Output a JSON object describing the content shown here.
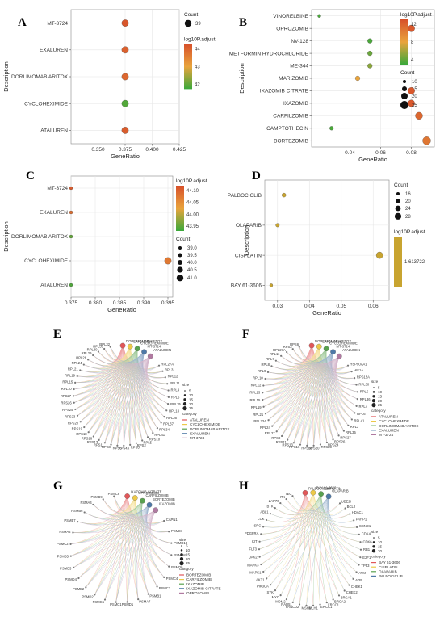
{
  "panels": [
    "A",
    "B",
    "C",
    "D",
    "E",
    "F",
    "G",
    "H"
  ],
  "chart_data": [
    {
      "panel": "A",
      "type": "scatter",
      "xlabel": "GeneRatio",
      "ylabel": "Description",
      "categories": [
        "ATALUREN",
        "CYCLOHEXIMIDE",
        "DORLIMOMAB ARITOX",
        "EXALUREN",
        "MT-3724"
      ],
      "x": [
        0.375,
        0.375,
        0.375,
        0.375,
        0.375
      ],
      "size": [
        39,
        39,
        39,
        39,
        39
      ],
      "color": [
        44.0,
        41.5,
        43.8,
        43.9,
        44.1
      ],
      "xlim": [
        0.325,
        0.425
      ],
      "xticks": [
        "0.350",
        "0.375",
        "0.400",
        "0.425"
      ],
      "legend_size": {
        "title": "Count",
        "labels": [
          "39"
        ]
      },
      "legend_color": {
        "title": "log10P.adjust",
        "labels": [
          "44",
          "43",
          "42"
        ],
        "colors": [
          "#d7502a",
          "#e9a43c",
          "#3aa83a"
        ]
      }
    },
    {
      "panel": "B",
      "type": "scatter",
      "xlabel": "GeneRatio",
      "ylabel": "Description",
      "categories": [
        "BORTEZOMIB",
        "CAMPTOTHECIN",
        "CARFILZOMIB",
        "IXAZOMIB",
        "IXAZOMIB CITRATE",
        "MARIZOMIB",
        "ME-344",
        "METFORMIN HYDROCHLORIDE",
        "NV-128",
        "OPROZOMIB",
        "VINORELBINE"
      ],
      "x": [
        0.09,
        0.028,
        0.085,
        0.08,
        0.08,
        0.045,
        0.053,
        0.053,
        0.053,
        0.08,
        0.02
      ],
      "size": [
        28,
        8,
        24,
        22,
        22,
        12,
        12,
        12,
        12,
        22,
        5
      ],
      "color": [
        11,
        3,
        12,
        13,
        13,
        8,
        5,
        4,
        3,
        13,
        3
      ],
      "xlim": [
        0.015,
        0.095
      ],
      "xticks": [
        "0.04",
        "0.06",
        "0.08"
      ],
      "legend_color": {
        "title": "log10P.adjust",
        "labels": [
          "12",
          "8",
          "4"
        ],
        "colors": [
          "#d7502a",
          "#e9a43c",
          "#3aa83a"
        ]
      },
      "legend_size": {
        "title": "Count",
        "labels": [
          "10",
          "15",
          "20",
          "25"
        ]
      }
    },
    {
      "panel": "C",
      "type": "scatter",
      "xlabel": "GeneRatio",
      "ylabel": "Description",
      "categories": [
        "ATALUREN",
        "CYCLOHEXIMIDE",
        "DORLIMOMAB ARITOX",
        "EXALUREN",
        "MT-3724"
      ],
      "x": [
        0.375,
        0.395,
        0.375,
        0.375,
        0.375
      ],
      "size": [
        39,
        41,
        39,
        39,
        39
      ],
      "color": [
        43.95,
        44.07,
        43.96,
        44.08,
        44.1
      ],
      "xlim": [
        0.375,
        0.396
      ],
      "xticks": [
        "0.375",
        "0.380",
        "0.385",
        "0.390",
        "0.395"
      ],
      "legend_color": {
        "title": "log10P.adjust",
        "labels": [
          "44.10",
          "44.05",
          "44.00",
          "43.95"
        ],
        "colors": [
          "#d7502a",
          "#e9a43c",
          "#3aa83a"
        ]
      },
      "legend_size": {
        "title": "Count",
        "labels": [
          "39.0",
          "39.5",
          "40.0",
          "40.5",
          "41.0"
        ]
      }
    },
    {
      "panel": "D",
      "type": "scatter",
      "xlabel": "GeneRatio",
      "ylabel": "Description",
      "categories": [
        "BAY 61-3606",
        "CISPLATIN",
        "OLAPARIB",
        "PALBOCICLIB"
      ],
      "x": [
        0.028,
        0.062,
        0.03,
        0.032
      ],
      "size": [
        12,
        28,
        14,
        16
      ],
      "color": [
        1.613722,
        1.613722,
        1.613722,
        1.613722
      ],
      "xlim": [
        0.026,
        0.065
      ],
      "xticks": [
        "0.03",
        "0.04",
        "0.05",
        "0.06"
      ],
      "legend_size": {
        "title": "Count",
        "labels": [
          "16",
          "20",
          "24",
          "28"
        ]
      },
      "legend_color": {
        "title": "log10P.adjust",
        "labels": [
          "1.613722"
        ],
        "colors": [
          "#c8a430"
        ]
      }
    }
  ],
  "networks": {
    "E": {
      "genes": [
        "RPL27A",
        "RPL3",
        "RPL12",
        "RPL11",
        "RPL4",
        "RPL6",
        "RPL35",
        "RPL13",
        "RPL36",
        "RPL37",
        "RPL34",
        "RPL41",
        "RPS10",
        "RPL5",
        "RPS2",
        "RPS3",
        "RPS4X",
        "RPS6",
        "RPS8",
        "RPS11",
        "RPS13",
        "RPS16",
        "RPS18",
        "RPS19",
        "RPS20",
        "RPS23",
        "RPS25",
        "RPS26",
        "RPS27",
        "RPL10",
        "RPL15",
        "RPL19",
        "RPL21",
        "RPL24",
        "RPL26",
        "RPL29",
        "RPL30",
        "RPL31",
        "RPL32"
      ],
      "drugs": [
        "DORLIMOMAB ARITOX",
        "EXALUREN",
        "CYCLOHEXIMIDE",
        "MT-3724",
        "ATALUREN"
      ],
      "legend": {
        "size_title": "size",
        "size_labels": [
          "5",
          "10",
          "15",
          "20",
          "25"
        ],
        "cat_title": "category",
        "categories": [
          "ATALUREN",
          "CYCLOHEXIMIDE",
          "DORLIMOMAB ARITOX",
          "EXALUREN",
          "MT-3724"
        ],
        "colors": [
          "#e15759",
          "#edc948",
          "#59a14f",
          "#4e79a7",
          "#b07aa1"
        ]
      }
    },
    "F": {
      "genes": [
        "HSP90AA1",
        "HIF1A",
        "RPS15A",
        "RPL30",
        "RPL5",
        "RPL36",
        "RPL4",
        "RPL6",
        "RPL41",
        "RPL3",
        "RPL35",
        "RPS27",
        "RPS26",
        "RPS24",
        "RPS23",
        "RPS20",
        "RPS18",
        "RPS16",
        "RPS13",
        "RPS11",
        "RPS8",
        "RPL27",
        "RPL24",
        "RPL23A",
        "RPL21",
        "RPL19",
        "RPL15",
        "RPL13",
        "RPL12",
        "RPL10",
        "RPL9",
        "RPL8",
        "RPL7",
        "RPL11",
        "RPL27A",
        "RPS3",
        "RPS6"
      ],
      "drugs": [
        "DORLIMOMAB ARITOX",
        "EXALUREN",
        "CYCLOHEXIMIDE",
        "MT-3724",
        "ATALUREN"
      ],
      "legend": {
        "size_title": "size",
        "size_labels": [
          "5",
          "10",
          "15",
          "20",
          "25"
        ],
        "cat_title": "category",
        "categories": [
          "ATALUREN",
          "CYCLOHEXIMIDE",
          "DORLIMOMAB ARITOX",
          "EXALUREN",
          "MT-3724"
        ],
        "colors": [
          "#e15759",
          "#edc948",
          "#59a14f",
          "#4e79a7",
          "#b07aa1"
        ]
      }
    },
    "G": {
      "genes": [
        "CAPN1",
        "PSME1",
        "PSMD13",
        "PSMD8",
        "PSMD6",
        "PSMC4",
        "PSMC3",
        "PSMB1",
        "PSMA7",
        "PSMD1",
        "PSMC1",
        "PSMC5",
        "PSMD2",
        "PSMB2",
        "PSMD4",
        "PSMB3",
        "PSMB5",
        "PSMC2",
        "PSMA2",
        "PSMB7",
        "PSMB6",
        "PSMA4",
        "PSMB9",
        "PSMC6"
      ],
      "drugs": [
        "IXAZOMIB CITRATE",
        "OPROZOMIB",
        "CARFILZOMIB",
        "BORTEZOMIB",
        "IXAZOMIB"
      ],
      "legend": {
        "size_title": "size",
        "size_labels": [
          "5",
          "10",
          "15",
          "20",
          "25"
        ],
        "cat_title": "category",
        "categories": [
          "BORTEZOMIB",
          "CARFILZOMIB",
          "IXAZOMIB",
          "IXAZOMIB CITRATE",
          "OPROZOMIB"
        ],
        "colors": [
          "#e15759",
          "#edc948",
          "#59a14f",
          "#4e79a7",
          "#b07aa1"
        ]
      }
    },
    "H": {
      "genes": [
        "UBE2I",
        "BCL2",
        "HDAC1",
        "PARP1",
        "CCND1",
        "CDK4",
        "CDK6",
        "RB1",
        "E2F1",
        "TP53",
        "ATM",
        "ATR",
        "CHEK1",
        "CHEK2",
        "BRCA1",
        "BRCA2",
        "XRCC1",
        "ERCC1",
        "MLH1",
        "MSH2",
        "FANCD2",
        "RAD51",
        "MDM2",
        "MYC",
        "SYK",
        "PIK3CA",
        "AKT1",
        "MAPK1",
        "MAPK3",
        "JAK2",
        "FLT3",
        "KIT",
        "PDGFRA",
        "SRC",
        "LCK",
        "ABL1",
        "BTK",
        "ZAP70",
        "ITK",
        "TEC"
      ],
      "drugs": [
        "PALBOCICLIB",
        "BAY 61-3606",
        "CISPLATIN",
        "OLAPARIB"
      ],
      "legend": {
        "size_title": "size",
        "size_labels": [
          "5",
          "10",
          "15",
          "20"
        ],
        "cat_title": "category",
        "categories": [
          "BAY 61-3606",
          "CISPLATIN",
          "OLAPARIB",
          "PALBOCICLIB"
        ],
        "colors": [
          "#e15759",
          "#edc948",
          "#59a14f",
          "#4e79a7"
        ]
      }
    }
  }
}
